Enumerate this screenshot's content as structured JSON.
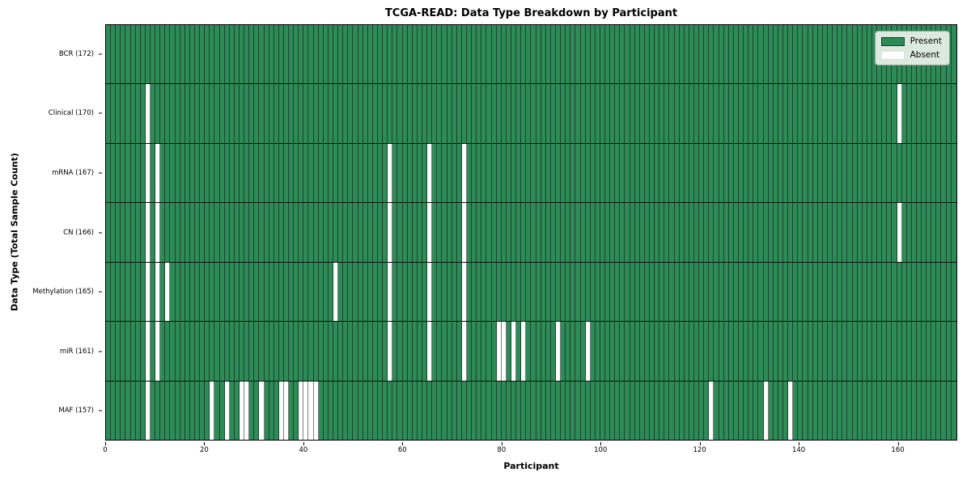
{
  "chart_data": {
    "type": "heatmap",
    "title": "TCGA-READ: Data Type Breakdown by Participant",
    "xlabel": "Participant",
    "ylabel": "Data Type (Total Sample Count)",
    "x_ticks": [
      0,
      20,
      40,
      60,
      80,
      100,
      120,
      140,
      160
    ],
    "x_max": 172,
    "grid": "per-participant vertical gridlines, black row separators",
    "rows": [
      {
        "label": "BCR (172)",
        "data_type": "BCR",
        "total_sample_count": 172,
        "absent_participants": []
      },
      {
        "label": "Clinical (170)",
        "data_type": "Clinical",
        "total_sample_count": 170,
        "absent_participants": [
          8,
          160
        ]
      },
      {
        "label": "mRNA (167)",
        "data_type": "mRNA",
        "total_sample_count": 167,
        "absent_participants": [
          8,
          10,
          57,
          65,
          72
        ]
      },
      {
        "label": "CN (166)",
        "data_type": "CN",
        "total_sample_count": 166,
        "absent_participants": [
          8,
          10,
          57,
          65,
          72,
          160
        ]
      },
      {
        "label": "Methylation (165)",
        "data_type": "Methylation",
        "total_sample_count": 165,
        "absent_participants": [
          8,
          10,
          12,
          46,
          57,
          65,
          72
        ]
      },
      {
        "label": "miR (161)",
        "data_type": "miR",
        "total_sample_count": 161,
        "absent_participants": [
          8,
          10,
          57,
          65,
          72,
          79,
          80,
          82,
          84,
          91,
          97
        ]
      },
      {
        "label": "MAF (157)",
        "data_type": "MAF",
        "total_sample_count": 157,
        "absent_participants": [
          8,
          21,
          24,
          27,
          28,
          31,
          35,
          36,
          39,
          40,
          41,
          42,
          122,
          133,
          138
        ]
      }
    ],
    "legend": {
      "position": "upper right",
      "entries": [
        {
          "label": "Present",
          "color": "#2e8b57"
        },
        {
          "label": "Absent",
          "color": "#ffffff"
        }
      ]
    },
    "colors": {
      "present": "#2e8b57",
      "absent": "#ffffff",
      "axis": "#000000"
    }
  }
}
